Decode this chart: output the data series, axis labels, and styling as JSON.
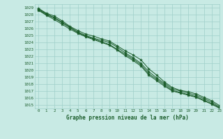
{
  "title": "Graphe pression niveau de la mer (hPa)",
  "background_color": "#c8eae4",
  "grid_color": "#9fcfca",
  "line_color": "#1a5c2a",
  "xlim": [
    -0.5,
    23
  ],
  "ylim": [
    1014.5,
    1029.5
  ],
  "yticks": [
    1015,
    1016,
    1017,
    1018,
    1019,
    1020,
    1021,
    1022,
    1023,
    1024,
    1025,
    1026,
    1027,
    1028,
    1029
  ],
  "xticks": [
    0,
    1,
    2,
    3,
    4,
    5,
    6,
    7,
    8,
    9,
    10,
    11,
    12,
    13,
    14,
    15,
    16,
    17,
    18,
    19,
    20,
    21,
    22,
    23
  ],
  "line1": [
    1028.9,
    1028.2,
    1027.8,
    1027.1,
    1026.3,
    1025.7,
    1025.2,
    1024.9,
    1024.5,
    1024.2,
    1023.5,
    1022.8,
    1022.2,
    1021.5,
    1020.2,
    1019.3,
    1018.3,
    1017.5,
    1017.1,
    1016.9,
    1016.6,
    1016.1,
    1015.6,
    1014.9
  ],
  "line2": [
    1028.8,
    1028.1,
    1027.6,
    1026.9,
    1026.2,
    1025.5,
    1025.0,
    1024.6,
    1024.3,
    1024.0,
    1023.3,
    1022.5,
    1021.8,
    1021.0,
    1019.8,
    1018.9,
    1018.1,
    1017.3,
    1017.0,
    1016.7,
    1016.4,
    1015.9,
    1015.4,
    1014.7
  ],
  "line3": [
    1028.6,
    1027.9,
    1027.3,
    1026.6,
    1025.9,
    1025.3,
    1024.8,
    1024.4,
    1024.0,
    1023.6,
    1022.9,
    1022.1,
    1021.4,
    1020.6,
    1019.3,
    1018.5,
    1017.7,
    1017.0,
    1016.7,
    1016.4,
    1016.1,
    1015.6,
    1015.1,
    1014.5
  ],
  "line4": [
    1028.7,
    1028.0,
    1027.5,
    1026.8,
    1026.1,
    1025.4,
    1024.9,
    1024.5,
    1024.1,
    1023.7,
    1023.0,
    1022.3,
    1021.6,
    1020.8,
    1019.5,
    1018.7,
    1017.9,
    1017.1,
    1016.8,
    1016.5,
    1016.2,
    1015.7,
    1015.2,
    1014.6
  ]
}
